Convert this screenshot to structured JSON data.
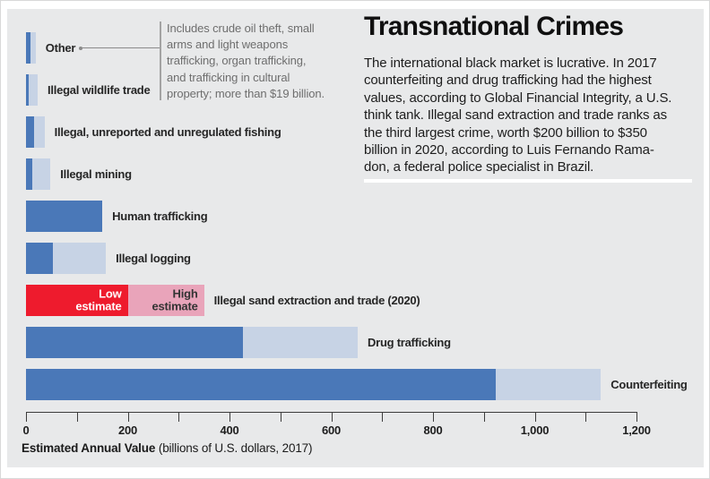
{
  "header": {
    "title": "Transnational Crimes",
    "intro_lines": [
      "The international black market is lucrative. In 2017",
      "counterfeiting and drug trafficking had the highest",
      "values, according to Global Financial Integrity, a U.S.",
      "think tank. Illegal sand extraction and trade ranks as",
      "the third largest crime, worth $200 billion to $350",
      "billion in 2020, according to Luis Fernando Rama-",
      "don, a federal police specialist in Brazil."
    ]
  },
  "annotation": {
    "points_to": "Other",
    "lines": [
      "Includes crude oil theft, small",
      "arms and light weapons",
      "trafficking, organ trafficking,",
      "and trafficking in cultural",
      "property; more than $19 billion."
    ]
  },
  "legend": {
    "low_label": "Low estimate",
    "high_label": "High estimate"
  },
  "axis": {
    "caption_bold": "Estimated Annual Value",
    "caption_rest": " (billions of U.S. dollars, 2017)",
    "major_tick_labels": [
      "0",
      "200",
      "400",
      "600",
      "800",
      "1,000",
      "1,200"
    ]
  },
  "colors": {
    "low_blue": "#4a78b8",
    "high_blue": "#c7d3e5",
    "low_red": "#ee1b2d",
    "high_pink": "#e9a4ba",
    "panel_background": "#e8e9ea"
  },
  "chart_data": {
    "type": "bar",
    "orientation": "horizontal",
    "title": "Transnational Crimes",
    "xlabel": "Estimated Annual Value (billions of U.S. dollars, 2017)",
    "xlim": [
      0,
      1200
    ],
    "x_major_ticks": [
      0,
      200,
      400,
      600,
      800,
      1000,
      1200
    ],
    "x_minor_tick_step": 100,
    "grid": false,
    "legend_position": "inside-highlight-bar",
    "series": [
      "Low estimate",
      "High estimate"
    ],
    "bars": [
      {
        "label": "Other",
        "low": 9,
        "high": 19,
        "highlight": false
      },
      {
        "label": "Illegal wildlife trade",
        "low": 5,
        "high": 23,
        "highlight": false
      },
      {
        "label": "Illegal, unreported and unregulated fishing",
        "low": 15.5,
        "high": 36.4,
        "highlight": false
      },
      {
        "label": "Illegal mining",
        "low": 12,
        "high": 48,
        "highlight": false
      },
      {
        "label": "Human trafficking",
        "low": 150,
        "high": 150,
        "highlight": false
      },
      {
        "label": "Illegal logging",
        "low": 52,
        "high": 157,
        "highlight": false
      },
      {
        "label": "Illegal sand extraction and trade (2020)",
        "low": 200,
        "high": 350,
        "highlight": true,
        "show_estimate_labels": true
      },
      {
        "label": "Drug trafficking",
        "low": 426,
        "high": 652,
        "highlight": false
      },
      {
        "label": "Counterfeiting",
        "low": 923,
        "high": 1130,
        "highlight": false
      }
    ]
  }
}
